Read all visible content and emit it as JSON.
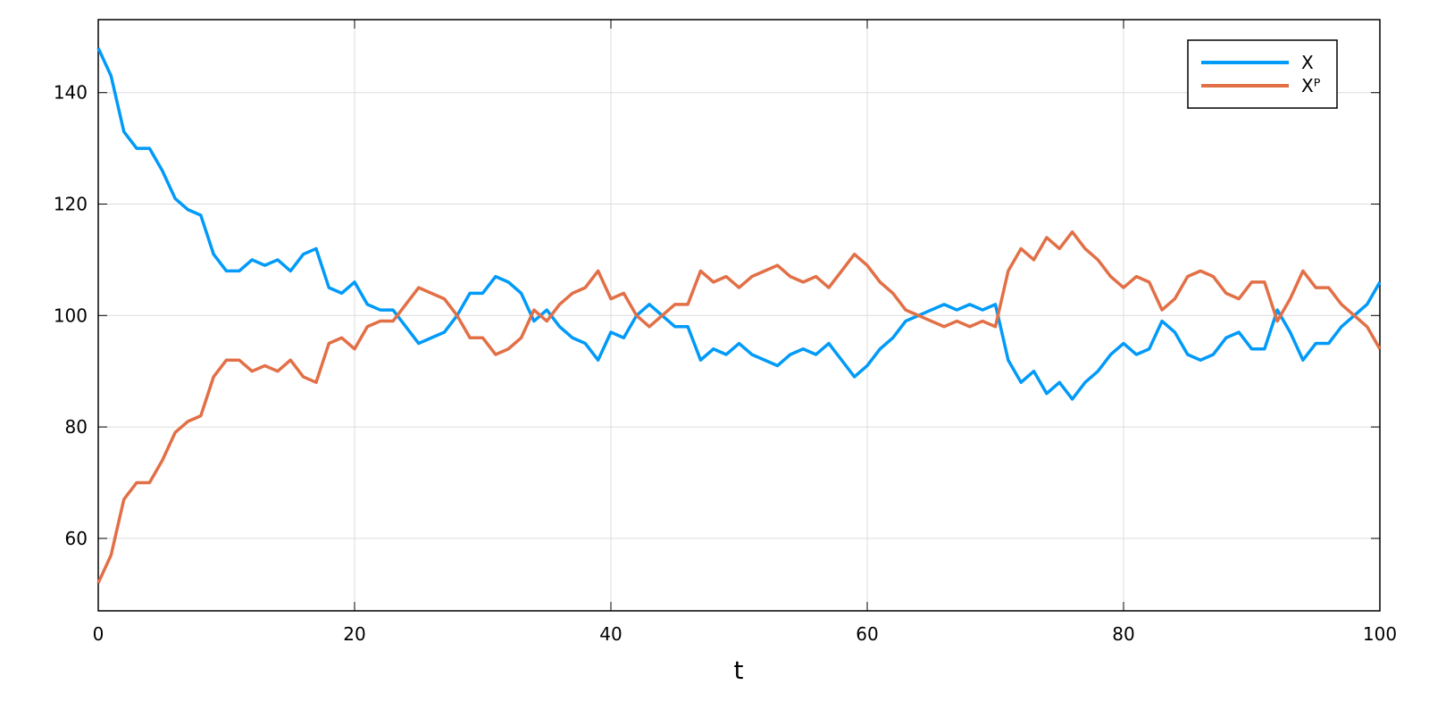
{
  "chart_data": {
    "type": "line",
    "x_label": "t",
    "x": [
      0,
      1,
      2,
      3,
      4,
      5,
      6,
      7,
      8,
      9,
      10,
      11,
      12,
      13,
      14,
      15,
      16,
      17,
      18,
      19,
      20,
      21,
      22,
      23,
      24,
      25,
      26,
      27,
      28,
      29,
      30,
      31,
      32,
      33,
      34,
      35,
      36,
      37,
      38,
      39,
      40,
      41,
      42,
      43,
      44,
      45,
      46,
      47,
      48,
      49,
      50,
      51,
      52,
      53,
      54,
      55,
      56,
      57,
      58,
      59,
      60,
      61,
      62,
      63,
      64,
      65,
      66,
      67,
      68,
      69,
      70,
      71,
      72,
      73,
      74,
      75,
      76,
      77,
      78,
      79,
      80,
      81,
      82,
      83,
      84,
      85,
      86,
      87,
      88,
      89,
      90,
      91,
      92,
      93,
      94,
      95,
      96,
      97,
      98,
      99,
      100
    ],
    "series": [
      {
        "name": "X",
        "color": "#009af9",
        "values": [
          148,
          143,
          133,
          130,
          130,
          126,
          121,
          119,
          118,
          111,
          108,
          108,
          110,
          109,
          110,
          108,
          111,
          112,
          105,
          104,
          106,
          102,
          101,
          101,
          98,
          95,
          96,
          97,
          100,
          104,
          104,
          107,
          106,
          104,
          99,
          101,
          98,
          96,
          95,
          92,
          97,
          96,
          100,
          102,
          100,
          98,
          98,
          92,
          94,
          93,
          95,
          93,
          92,
          91,
          93,
          94,
          93,
          95,
          92,
          89,
          91,
          94,
          96,
          99,
          100,
          101,
          102,
          101,
          102,
          101,
          102,
          92,
          88,
          90,
          86,
          88,
          85,
          88,
          90,
          93,
          95,
          93,
          94,
          99,
          97,
          93,
          92,
          93,
          96,
          97,
          94,
          94,
          101,
          97,
          92,
          95,
          95,
          98,
          100,
          102,
          106
        ]
      },
      {
        "name": "Xᴾ",
        "color": "#e26f46",
        "values": [
          52,
          57,
          67,
          70,
          70,
          74,
          79,
          81,
          82,
          89,
          92,
          92,
          90,
          91,
          90,
          92,
          89,
          88,
          95,
          96,
          94,
          98,
          99,
          99,
          102,
          105,
          104,
          103,
          100,
          96,
          96,
          93,
          94,
          96,
          101,
          99,
          102,
          104,
          105,
          108,
          103,
          104,
          100,
          98,
          100,
          102,
          102,
          108,
          106,
          107,
          105,
          107,
          108,
          109,
          107,
          106,
          107,
          105,
          108,
          111,
          109,
          106,
          104,
          101,
          100,
          99,
          98,
          99,
          98,
          99,
          98,
          108,
          112,
          110,
          114,
          112,
          115,
          112,
          110,
          107,
          105,
          107,
          106,
          101,
          103,
          107,
          108,
          107,
          104,
          103,
          106,
          106,
          99,
          103,
          108,
          105,
          105,
          102,
          100,
          98,
          94
        ]
      }
    ],
    "xlim": [
      0,
      100
    ],
    "xticks": [
      0,
      20,
      40,
      60,
      80,
      100
    ],
    "ylim": [
      47,
      153.1
    ],
    "yticks": [
      60,
      80,
      100,
      120,
      140
    ],
    "grid": true,
    "legend_position": "top-right"
  }
}
